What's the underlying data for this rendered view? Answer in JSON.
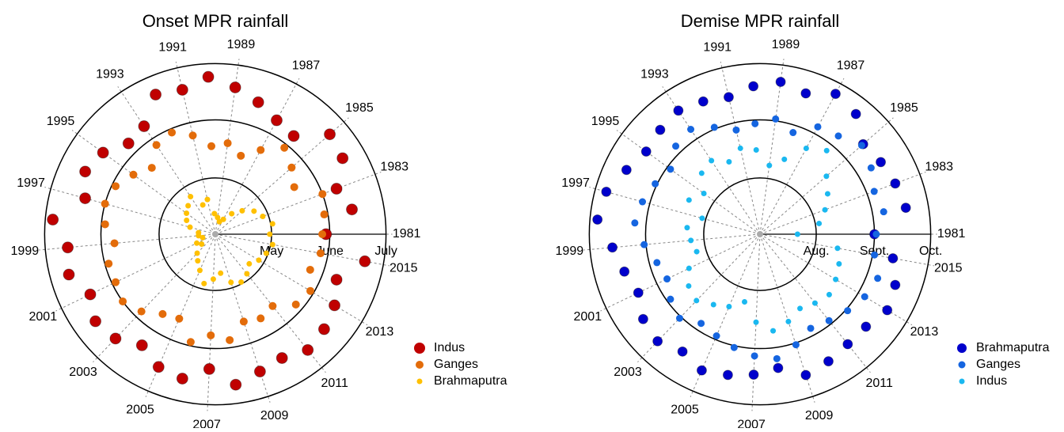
{
  "chart_data": [
    {
      "type": "polar-scatter",
      "title": "Onset MPR rainfall",
      "x": [
        1981,
        1982,
        1983,
        1984,
        1985,
        1986,
        1987,
        1988,
        1989,
        1990,
        1991,
        1992,
        1993,
        1994,
        1995,
        1996,
        1997,
        1998,
        1999,
        2000,
        2001,
        2002,
        2003,
        2004,
        2005,
        2006,
        2007,
        2008,
        2009,
        2010,
        2011,
        2012,
        2013,
        2014,
        2015
      ],
      "thetalim": [
        1981,
        2016
      ],
      "thetaticks": [
        1981,
        1983,
        1985,
        1987,
        1989,
        1991,
        1993,
        1995,
        1997,
        1999,
        2001,
        2003,
        2005,
        2007,
        2009,
        2011,
        2013,
        2015
      ],
      "rlim": [
        91,
        183
      ],
      "rticks": [
        {
          "value": 121,
          "label": "May"
        },
        {
          "value": 152,
          "label": "June"
        },
        {
          "value": 182,
          "label": "July"
        }
      ],
      "series": [
        {
          "name": "Indus",
          "color": "#c00000",
          "size": 7,
          "values": [
            150,
            165,
            160,
            170,
            172,
            158,
            160,
            165,
            170,
            175,
            170,
            172,
            160,
            158,
            165,
            168,
            163,
            178,
            170,
            172,
            165,
            170,
            168,
            162,
            168,
            170,
            163,
            172,
            168,
            166,
            170,
            168,
            165,
            160,
            172
          ]
        },
        {
          "name": "Ganges",
          "color": "#e36c0a",
          "size": 5,
          "values": [
            148,
            150,
            152,
            140,
            145,
            150,
            142,
            135,
            140,
            138,
            145,
            150,
            148,
            140,
            145,
            150,
            152,
            150,
            145,
            150,
            150,
            152,
            148,
            142,
            140,
            150,
            145,
            148,
            140,
            142,
            140,
            148,
            150,
            145,
            148
          ]
        },
        {
          "name": "Brahmaputra",
          "color": "#ffc000",
          "size": 3.5,
          "values": [
            120,
            122,
            118,
            115,
            110,
            105,
            100,
            98,
            100,
            102,
            110,
            108,
            115,
            112,
            110,
            108,
            105,
            100,
            100,
            98,
            102,
            100,
            105,
            108,
            112,
            118,
            115,
            112,
            118,
            120,
            118,
            115,
            118,
            120,
            122
          ]
        }
      ]
    },
    {
      "type": "polar-scatter",
      "title": "Demise MPR rainfall",
      "x": [
        1981,
        1982,
        1983,
        1984,
        1985,
        1986,
        1987,
        1988,
        1989,
        1990,
        1991,
        1992,
        1993,
        1994,
        1995,
        1996,
        1997,
        1998,
        1999,
        2000,
        2001,
        2002,
        2003,
        2004,
        2005,
        2006,
        2007,
        2008,
        2009,
        2010,
        2011,
        2012,
        2013,
        2014,
        2015
      ],
      "thetalim": [
        1981,
        2016
      ],
      "thetaticks": [
        1981,
        1983,
        1985,
        1987,
        1989,
        1991,
        1993,
        1995,
        1997,
        1999,
        2001,
        2003,
        2005,
        2007,
        2009,
        2011,
        2013,
        2015
      ],
      "rlim": [
        183,
        275
      ],
      "rticks": [
        {
          "value": 213,
          "label": "Aug."
        },
        {
          "value": 244,
          "label": "Sept."
        },
        {
          "value": 274,
          "label": "Oct."
        }
      ],
      "series": [
        {
          "name": "Brahmaputra",
          "color": "#0000cc",
          "size": 6,
          "values": [
            244,
            262,
            260,
            258,
            256,
            265,
            268,
            262,
            265,
            262,
            258,
            260,
            262,
            260,
            258,
            262,
            268,
            270,
            262,
            258,
            255,
            260,
            262,
            258,
            262,
            260,
            258,
            255,
            262,
            260,
            258,
            258,
            262,
            260,
            255
          ]
        },
        {
          "name": "Ganges",
          "color": "#1565e0",
          "size": 4.5,
          "values": [
            245,
            250,
            248,
            252,
            255,
            250,
            248,
            240,
            245,
            242,
            240,
            245,
            250,
            248,
            242,
            245,
            248,
            250,
            245,
            240,
            238,
            242,
            245,
            240,
            242,
            245,
            248,
            250,
            245,
            240,
            242,
            245,
            248,
            250,
            245
          ]
        },
        {
          "name": "Indus",
          "color": "#1ab8f0",
          "size": 3.5,
          "values": [
            203,
            215,
            220,
            225,
            230,
            240,
            235,
            225,
            220,
            228,
            230,
            225,
            230,
            228,
            220,
            225,
            215,
            222,
            220,
            218,
            225,
            230,
            232,
            228,
            225,
            220,
            230,
            235,
            232,
            228,
            230,
            232,
            230,
            228,
            225
          ]
        }
      ]
    }
  ]
}
